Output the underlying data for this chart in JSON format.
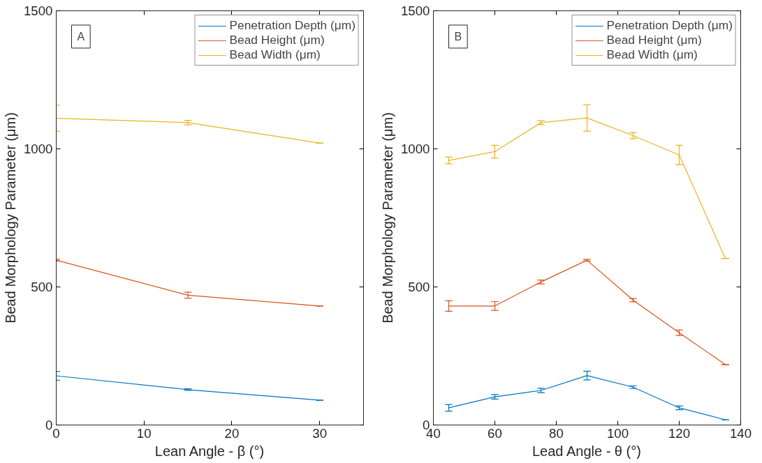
{
  "chart_data": [
    {
      "type": "line",
      "xlabel": "Lean Angle - β (°)",
      "ylabel": "Bead Morphology Parameter (μm)",
      "annotations": [
        "A"
      ],
      "legend": "top right",
      "x": [
        0,
        15,
        30
      ],
      "xlim": [
        0,
        35
      ],
      "xticks": [
        0,
        10,
        20,
        30
      ],
      "ylim": [
        0,
        1500
      ],
      "yticks": [
        0,
        500,
        1000,
        1500
      ],
      "series": [
        {
          "name": "Penetration Depth (μm)",
          "color": "#0072bd",
          "values": [
            178,
            128,
            90
          ],
          "errors": [
            16,
            3,
            0
          ]
        },
        {
          "name": "Bead Height (μm)",
          "color": "#d95319",
          "values": [
            597,
            470,
            431
          ],
          "errors": [
            3,
            11,
            0
          ]
        },
        {
          "name": "Bead Width (μm)",
          "color": "#edb120",
          "values": [
            1111,
            1095,
            1021
          ],
          "errors": [
            47,
            8,
            0
          ]
        }
      ]
    },
    {
      "type": "line",
      "xlabel": "Lead Angle - θ (°)",
      "ylabel": "Bead Morphology Parameter (μm)",
      "annotations": [
        "B"
      ],
      "legend": "top right",
      "x": [
        45,
        60,
        75,
        90,
        105,
        120,
        135
      ],
      "xlim": [
        40,
        140
      ],
      "xticks": [
        40,
        60,
        80,
        100,
        120,
        140
      ],
      "ylim": [
        0,
        1500
      ],
      "yticks": [
        0,
        500,
        1000,
        1500
      ],
      "series": [
        {
          "name": "Penetration Depth (μm)",
          "color": "#0072bd",
          "values": [
            62,
            102,
            125,
            179,
            137,
            62,
            19
          ],
          "errors": [
            12,
            8,
            8,
            16,
            5,
            7,
            0
          ]
        },
        {
          "name": "Bead Height (μm)",
          "color": "#d95319",
          "values": [
            431,
            431,
            518,
            597,
            452,
            334,
            219
          ],
          "errors": [
            19,
            16,
            7,
            3,
            6,
            10,
            0
          ]
        },
        {
          "name": "Bead Width (μm)",
          "color": "#edb120",
          "values": [
            958,
            990,
            1095,
            1112,
            1048,
            978,
            603
          ],
          "errors": [
            12,
            23,
            7,
            48,
            11,
            35,
            0
          ]
        }
      ]
    }
  ]
}
